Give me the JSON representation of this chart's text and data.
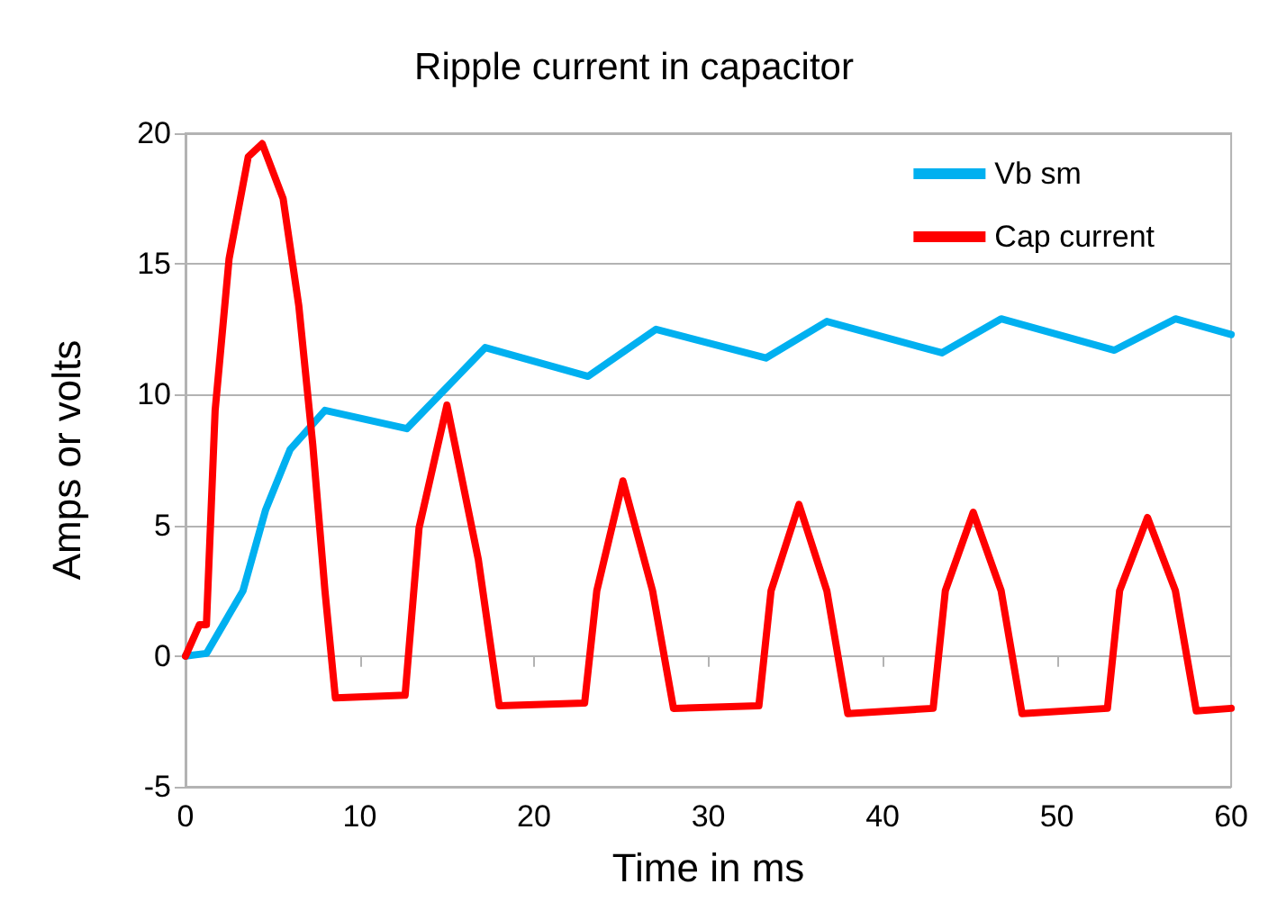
{
  "chart_data": {
    "type": "line",
    "title": "Ripple current in capacitor",
    "xlabel": "Time in ms",
    "ylabel": "Amps or volts",
    "xlim": [
      0,
      60
    ],
    "xticks": [
      0,
      10,
      20,
      30,
      40,
      50,
      60
    ],
    "ylim": [
      -5,
      20
    ],
    "yticks": [
      -5,
      0,
      5,
      10,
      15,
      20
    ],
    "grid": "y",
    "legend": "top right",
    "marker": "none",
    "line_style": "solid",
    "series": [
      {
        "name": "Vb sm",
        "color": "#00b0f0",
        "x": [
          0,
          1.2,
          3.3,
          4.6,
          6,
          8,
          12.7,
          17.2,
          23.1,
          27,
          33.3,
          36.8,
          43.4,
          46.8,
          53.3,
          56.8,
          60
        ],
        "values": [
          0,
          0.1,
          2.5,
          5.6,
          7.9,
          9.4,
          8.7,
          11.8,
          10.7,
          12.5,
          11.4,
          12.8,
          11.6,
          12.9,
          11.7,
          12.9,
          12.3
        ]
      },
      {
        "name": "Cap current",
        "color": "#ff0000",
        "x": [
          0,
          0.8,
          1.2,
          1.7,
          2.5,
          3.6,
          4.4,
          5.6,
          6.5,
          7.3,
          8,
          8.6,
          12.6,
          13.4,
          15,
          16.8,
          18,
          22.9,
          23.6,
          25.1,
          26.8,
          28,
          32.9,
          33.6,
          35.2,
          36.8,
          38,
          42.9,
          43.6,
          45.2,
          46.8,
          48,
          52.9,
          53.6,
          55.2,
          56.8,
          58,
          60
        ],
        "values": [
          0,
          1.2,
          1.2,
          9.4,
          15.2,
          19.1,
          19.6,
          17.5,
          13.4,
          8.1,
          2.5,
          -1.6,
          -1.5,
          4.9,
          9.6,
          3.7,
          -1.9,
          -1.8,
          2.5,
          6.7,
          2.5,
          -2,
          -1.9,
          2.5,
          5.8,
          2.5,
          -2.2,
          -2,
          2.5,
          5.5,
          2.5,
          -2.2,
          -2,
          2.5,
          5.3,
          2.5,
          -2.1,
          -2
        ]
      }
    ]
  }
}
